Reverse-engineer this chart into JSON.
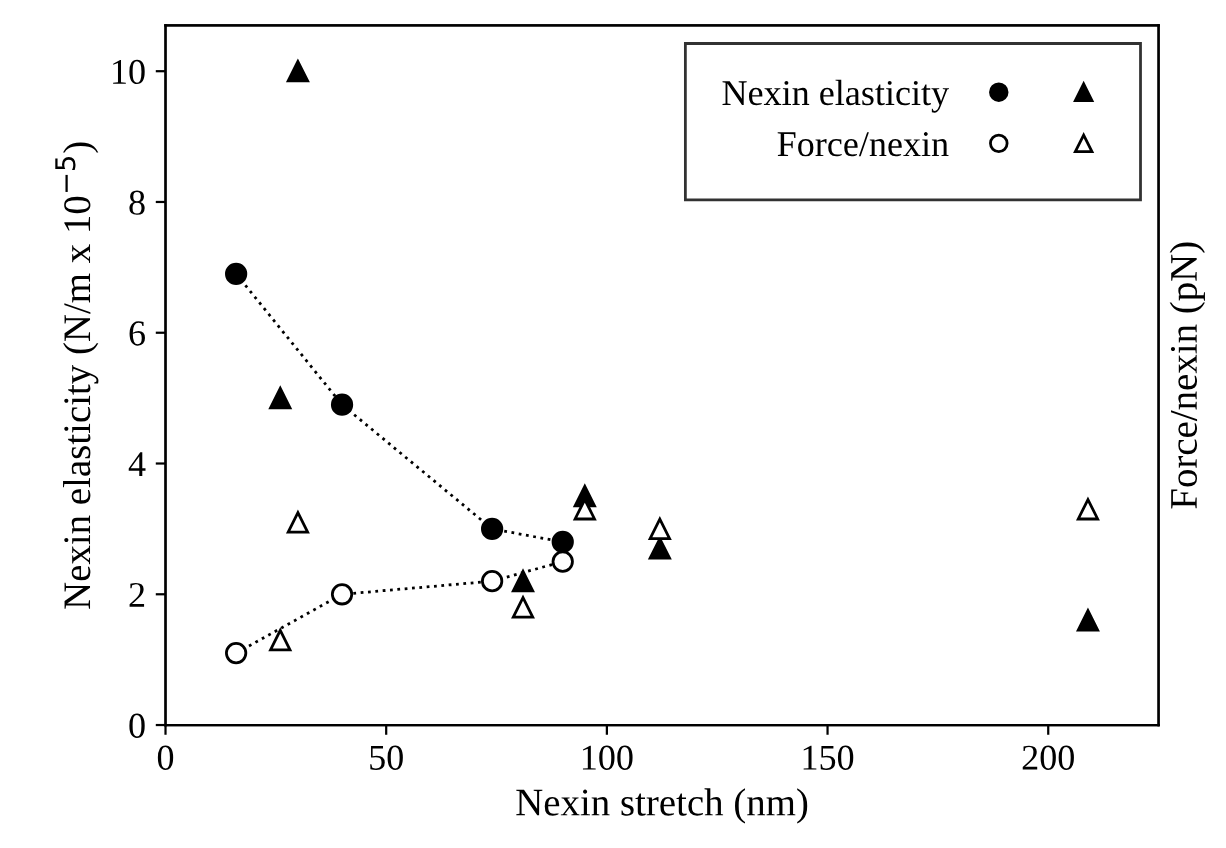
{
  "chart_data": {
    "type": "scatter",
    "xlabel": "Nexin stretch (nm)",
    "ylabel": "Nexin elasticity (N/m x 10$^{−5}$)",
    "y2label": "Force/nexin (pN)",
    "xlim": [
      0,
      225
    ],
    "xticks": [
      0,
      50,
      100,
      150,
      200
    ],
    "ylim": [
      0,
      10.7
    ],
    "yticks": [
      0,
      2,
      4,
      6,
      8,
      10
    ],
    "grid": false,
    "legend": "top right",
    "series": [
      {
        "name": "Nexin elasticity",
        "type": "line",
        "marker": "circle",
        "line_style": "dotted",
        "color": "#000000",
        "x": [
          16,
          40,
          74,
          90
        ],
        "values": [
          6.9,
          4.9,
          3.0,
          2.8
        ]
      },
      {
        "marker": "triangle",
        "color": "#000000",
        "x": [
          30,
          26,
          81,
          95,
          112,
          209
        ],
        "values": [
          10.0,
          5.0,
          2.2,
          3.5,
          2.7,
          1.6
        ]
      },
      {
        "name": "Force/nexin",
        "type": "line",
        "marker": "circle",
        "line_style": "dotted",
        "color": "#ffffff",
        "x": [
          16,
          40,
          74,
          90
        ],
        "values": [
          1.1,
          2.0,
          2.2,
          2.5
        ]
      },
      {
        "marker": "triangle",
        "color": "#ffffff",
        "x": [
          30,
          26,
          81,
          95,
          112,
          209
        ],
        "values": [
          3.1,
          1.3,
          1.8,
          3.3,
          3.0,
          3.3
        ]
      }
    ]
  }
}
